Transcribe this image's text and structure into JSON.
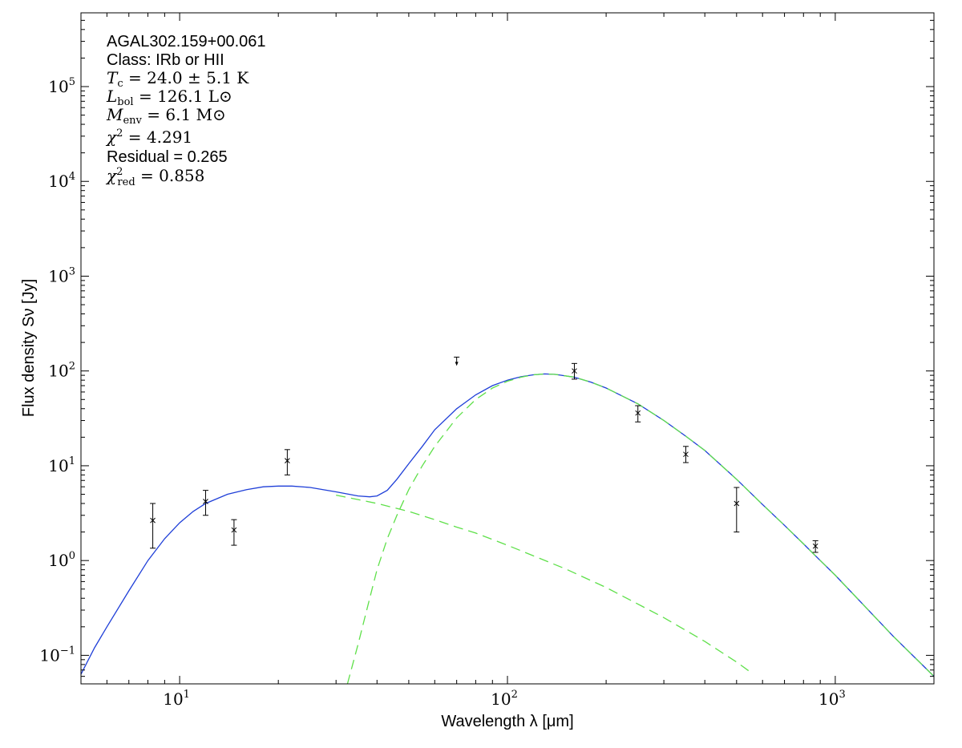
{
  "chart_data": {
    "type": "scatter",
    "x_scale": "log",
    "y_scale": "log",
    "xlim": [
      5,
      2000
    ],
    "ylim": [
      0.05,
      600000
    ],
    "grid": false,
    "xlabel": "Wavelength λ [μm]",
    "ylabel": "Flux density Sν [Jy]",
    "x_ticks": [
      {
        "value": 10,
        "base": "10",
        "exp": "1"
      },
      {
        "value": 100,
        "base": "10",
        "exp": "2"
      },
      {
        "value": 1000,
        "base": "10",
        "exp": "3"
      }
    ],
    "y_ticks": [
      {
        "value": 0.1,
        "base": "10",
        "exp": "−1"
      },
      {
        "value": 1,
        "base": "10",
        "exp": "0"
      },
      {
        "value": 10,
        "base": "10",
        "exp": "1"
      },
      {
        "value": 100,
        "base": "10",
        "exp": "2"
      },
      {
        "value": 1000,
        "base": "10",
        "exp": "3"
      },
      {
        "value": 10000,
        "base": "10",
        "exp": "4"
      },
      {
        "value": 100000,
        "base": "10",
        "exp": "5"
      }
    ],
    "annotations": {
      "source": "AGAL302.159+00.061",
      "class_text": "Class: IRb or HII",
      "tc_value": "24.0 ± 5.1 K",
      "lbol_value": "126.1 L⊙",
      "menv_value": "6.1 M⊙",
      "chi2_value": "4.291",
      "residual_text": "Residual = 0.265",
      "chi2red_value": "0.858"
    },
    "points": [
      {
        "x": 8.28,
        "y": 2.65,
        "err_low": 1.35,
        "err_high": 4.0
      },
      {
        "x": 12.0,
        "y": 4.2,
        "err_low": 3.0,
        "err_high": 5.5
      },
      {
        "x": 14.65,
        "y": 2.1,
        "err_low": 1.45,
        "err_high": 2.7
      },
      {
        "x": 21.3,
        "y": 11.3,
        "err_low": 8.0,
        "err_high": 14.8
      },
      {
        "x": 160,
        "y": 100,
        "err_low": 82,
        "err_high": 120
      },
      {
        "x": 250,
        "y": 36,
        "err_low": 29,
        "err_high": 43
      },
      {
        "x": 350,
        "y": 13.2,
        "err_low": 10.8,
        "err_high": 16
      },
      {
        "x": 500,
        "y": 4.0,
        "err_low": 2.0,
        "err_high": 5.9
      },
      {
        "x": 870,
        "y": 1.42,
        "err_low": 1.22,
        "err_high": 1.62
      }
    ],
    "upper_limits": [
      {
        "x": 70,
        "y": 140
      }
    ],
    "series": [
      {
        "style": "solid",
        "color": "#1f3fd8",
        "points": [
          [
            5,
            0.063
          ],
          [
            5.5,
            0.12
          ],
          [
            6,
            0.2
          ],
          [
            7,
            0.48
          ],
          [
            8,
            1.0
          ],
          [
            9,
            1.7
          ],
          [
            10,
            2.5
          ],
          [
            11,
            3.3
          ],
          [
            12,
            4.0
          ],
          [
            14,
            5.0
          ],
          [
            16,
            5.6
          ],
          [
            18,
            6.0
          ],
          [
            20,
            6.1
          ],
          [
            22,
            6.1
          ],
          [
            25,
            5.9
          ],
          [
            30,
            5.3
          ],
          [
            35,
            4.8
          ],
          [
            38,
            4.7
          ],
          [
            40,
            4.8
          ],
          [
            43,
            5.5
          ],
          [
            46,
            7.2
          ],
          [
            50,
            10.5
          ],
          [
            55,
            16
          ],
          [
            60,
            24
          ],
          [
            70,
            40
          ],
          [
            80,
            56
          ],
          [
            90,
            70
          ],
          [
            100,
            80
          ],
          [
            110,
            87
          ],
          [
            120,
            91
          ],
          [
            130,
            93
          ],
          [
            140,
            92
          ],
          [
            160,
            86
          ],
          [
            180,
            76
          ],
          [
            200,
            66
          ],
          [
            250,
            45
          ],
          [
            300,
            30
          ],
          [
            350,
            20.5
          ],
          [
            400,
            14.5
          ],
          [
            500,
            7.2
          ],
          [
            600,
            3.9
          ],
          [
            700,
            2.35
          ],
          [
            800,
            1.5
          ],
          [
            900,
            1.0
          ],
          [
            1000,
            0.7
          ],
          [
            1200,
            0.36
          ],
          [
            1500,
            0.16
          ],
          [
            2000,
            0.06
          ]
        ]
      },
      {
        "style": "dashed",
        "color": "#5fe04a",
        "points": [
          [
            30,
            4.9
          ],
          [
            35,
            4.4
          ],
          [
            40,
            4.0
          ],
          [
            50,
            3.3
          ],
          [
            60,
            2.7
          ],
          [
            70,
            2.25
          ],
          [
            80,
            1.95
          ],
          [
            100,
            1.45
          ],
          [
            150,
            0.82
          ],
          [
            200,
            0.52
          ],
          [
            300,
            0.25
          ],
          [
            400,
            0.14
          ],
          [
            500,
            0.085
          ],
          [
            550,
            0.067
          ]
        ]
      },
      {
        "style": "dashed",
        "color": "#5fe04a",
        "points": [
          [
            32.5,
            0.05
          ],
          [
            35,
            0.13
          ],
          [
            38,
            0.4
          ],
          [
            40,
            0.8
          ],
          [
            43,
            1.7
          ],
          [
            46,
            3.0
          ],
          [
            50,
            5.6
          ],
          [
            55,
            10
          ],
          [
            60,
            16
          ],
          [
            70,
            32
          ],
          [
            80,
            50
          ],
          [
            90,
            66
          ],
          [
            100,
            78
          ],
          [
            110,
            86
          ],
          [
            120,
            91
          ],
          [
            130,
            93
          ],
          [
            140,
            92
          ],
          [
            160,
            86
          ],
          [
            180,
            76
          ],
          [
            200,
            66
          ],
          [
            250,
            45
          ],
          [
            300,
            30
          ],
          [
            350,
            20.5
          ],
          [
            400,
            14.5
          ],
          [
            500,
            7.2
          ],
          [
            600,
            3.9
          ],
          [
            700,
            2.35
          ],
          [
            800,
            1.5
          ],
          [
            900,
            1.0
          ],
          [
            1000,
            0.7
          ],
          [
            1200,
            0.36
          ],
          [
            1500,
            0.16
          ],
          [
            2000,
            0.06
          ]
        ]
      }
    ]
  }
}
